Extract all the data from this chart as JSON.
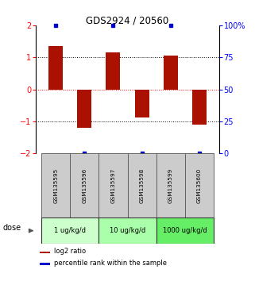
{
  "title": "GDS2924 / 20560",
  "samples": [
    "GSM135595",
    "GSM135596",
    "GSM135597",
    "GSM135598",
    "GSM135599",
    "GSM135600"
  ],
  "log2_ratios": [
    1.35,
    -1.2,
    1.15,
    -0.88,
    1.05,
    -1.1
  ],
  "percentile_ranks": [
    98,
    2,
    98,
    2,
    98,
    2
  ],
  "bar_color": "#AA1100",
  "dot_color": "#0000CC",
  "ylim_left": [
    -2,
    2
  ],
  "ylim_right": [
    0,
    100
  ],
  "yticks_left": [
    -2,
    -1,
    0,
    1,
    2
  ],
  "yticks_right": [
    0,
    25,
    50,
    75,
    100
  ],
  "ytick_labels_right": [
    "0",
    "25",
    "50",
    "75",
    "100%"
  ],
  "hlines_dotted": [
    -1,
    1
  ],
  "hline_red": 0,
  "dose_groups": [
    {
      "label": "1 ug/kg/d",
      "samples": [
        0,
        1
      ],
      "color": "#ccffcc"
    },
    {
      "label": "10 ug/kg/d",
      "samples": [
        2,
        3
      ],
      "color": "#aaffaa"
    },
    {
      "label": "1000 ug/kg/d",
      "samples": [
        4,
        5
      ],
      "color": "#66ee66"
    }
  ],
  "sample_box_color": "#cccccc",
  "legend_red_label": "log2 ratio",
  "legend_blue_label": "percentile rank within the sample",
  "dose_label": "dose",
  "background_color": "#ffffff"
}
